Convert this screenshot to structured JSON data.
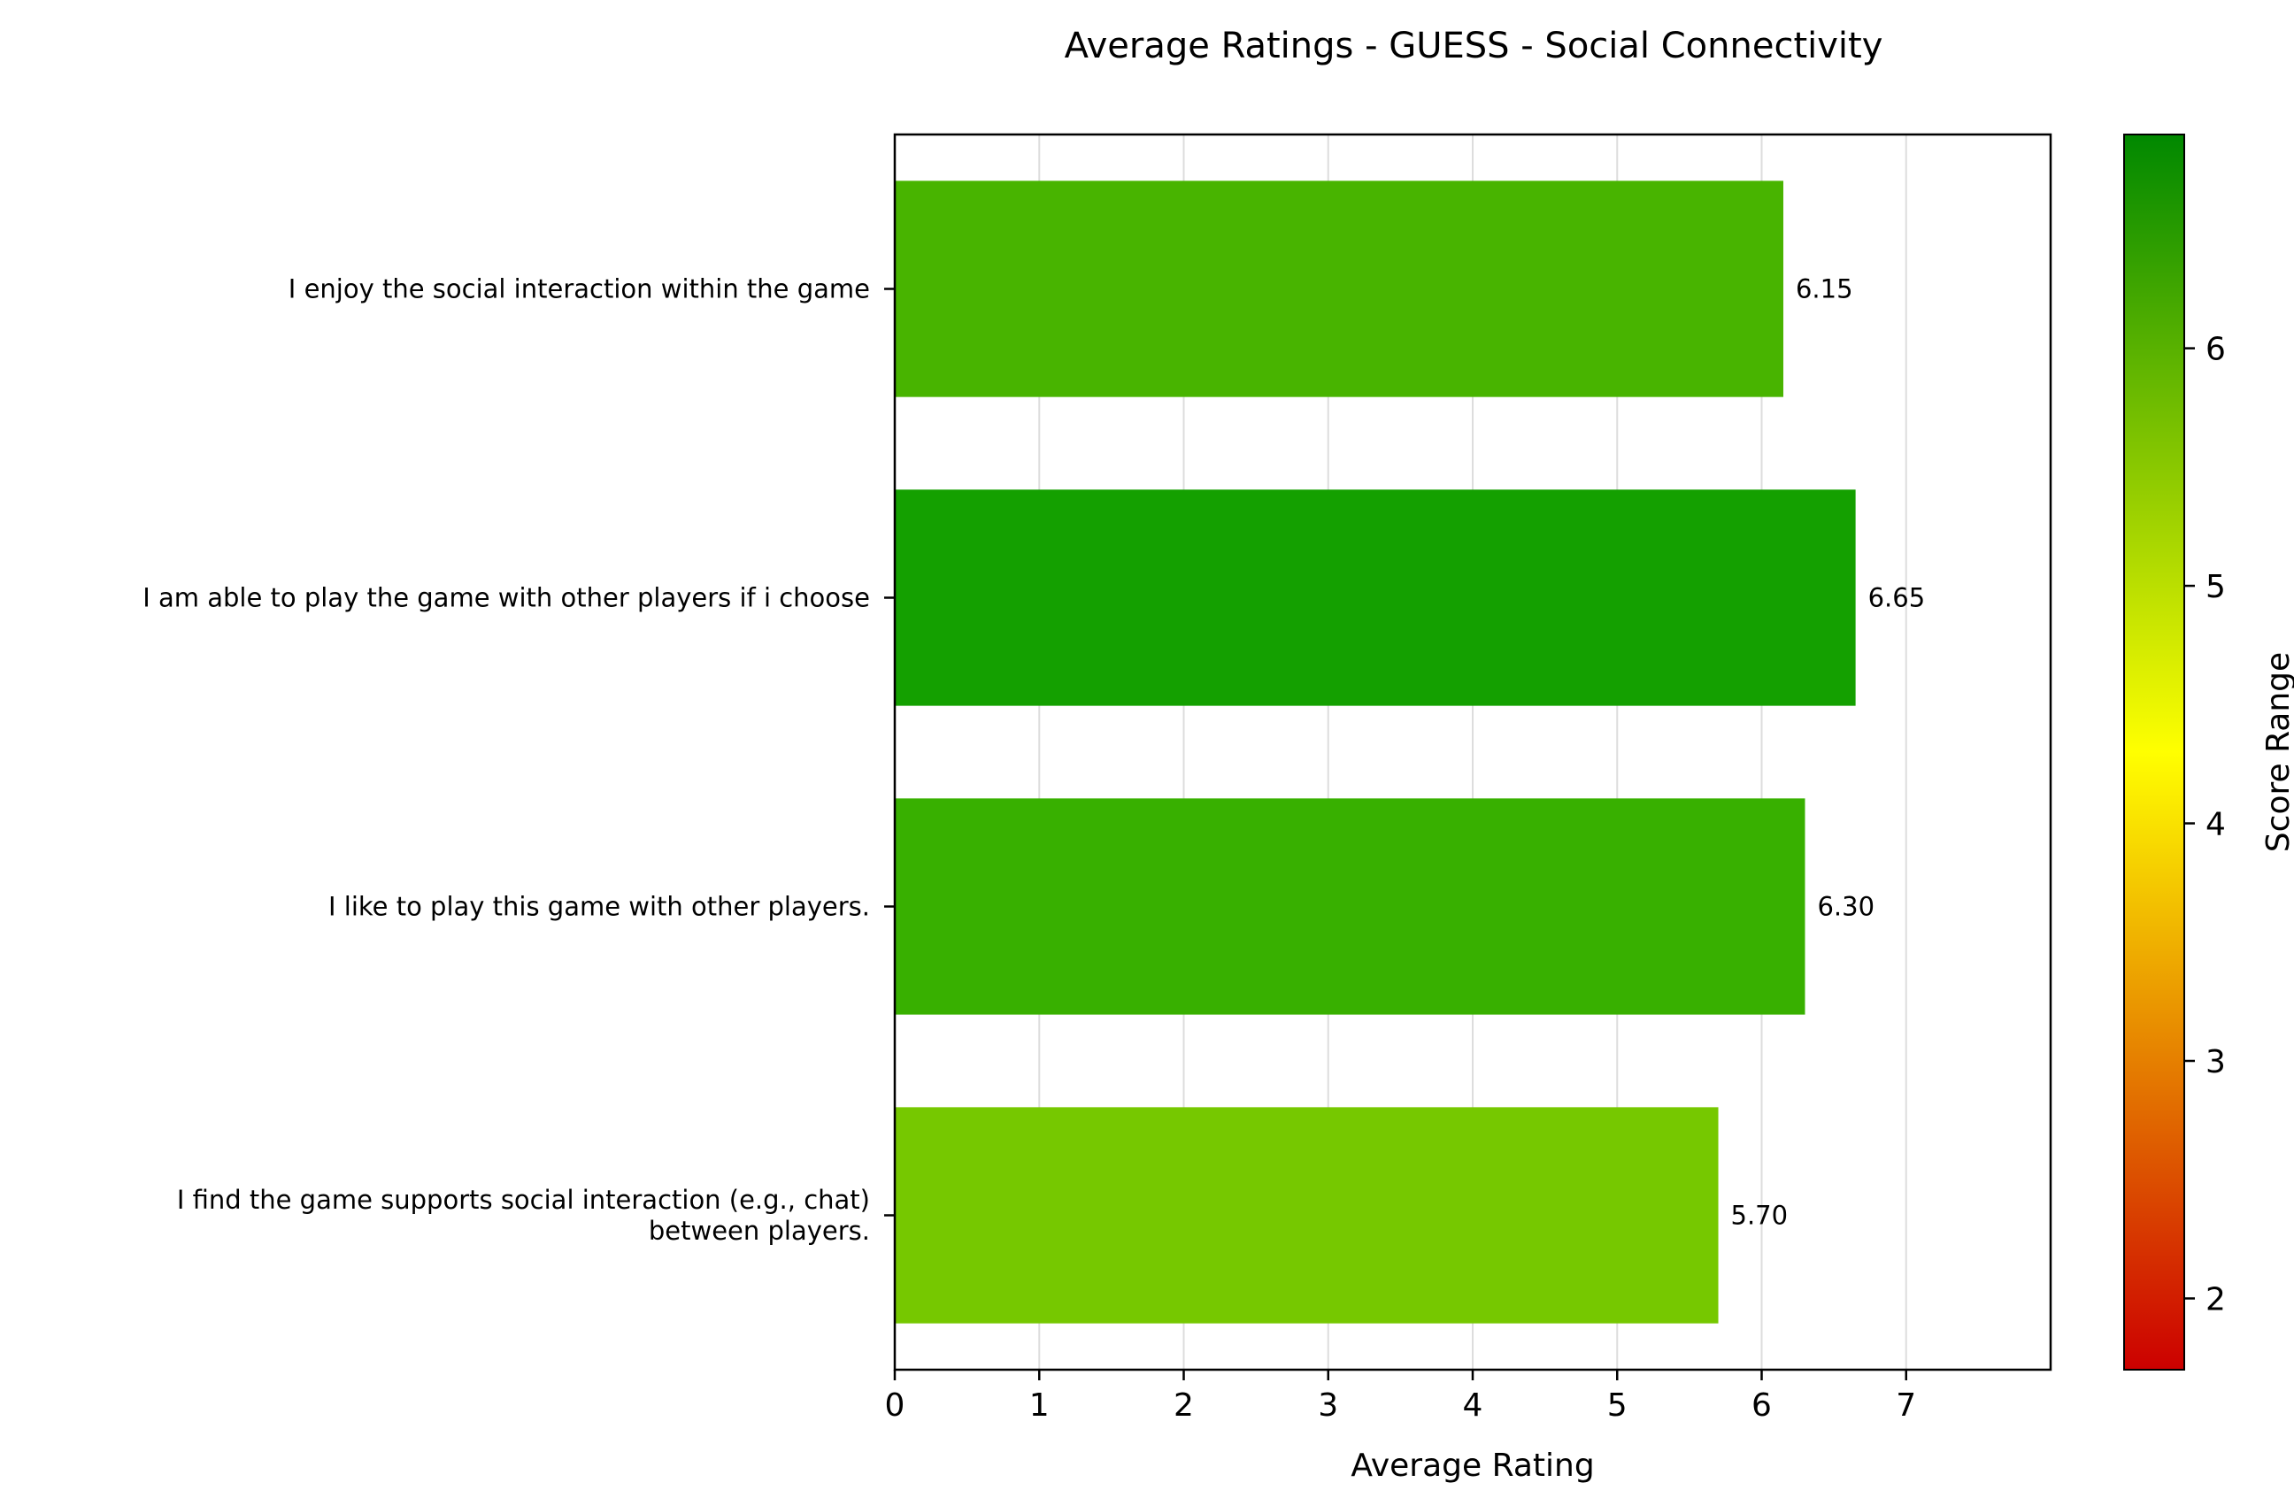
{
  "chart_data": {
    "type": "bar",
    "orientation": "horizontal",
    "title": "Average Ratings - GUESS - Social Connectivity",
    "xlabel": "Average Rating",
    "ylabel": "",
    "xlim": [
      0,
      8
    ],
    "xticks": [
      0,
      1,
      2,
      3,
      4,
      5,
      6,
      7
    ],
    "grid": "vertical",
    "categories": [
      [
        "I enjoy the social interaction within the game"
      ],
      [
        "I am able to play the game with other players if i choose"
      ],
      [
        "I like to play this game with other players."
      ],
      [
        "I find the game supports social interaction (e.g., chat)",
        "between players."
      ]
    ],
    "values": [
      6.15,
      6.65,
      6.3,
      5.7
    ],
    "value_labels": [
      "6.15",
      "6.65",
      "6.30",
      "5.70"
    ],
    "bar_colors": [
      "#48b400",
      "#14a000",
      "#38b000",
      "#76c800"
    ],
    "colorbar": {
      "label": "Score Range",
      "range": [
        1.7,
        6.9
      ],
      "ticks": [
        2,
        3,
        4,
        5,
        6
      ],
      "colors": [
        "#cc0000",
        "#ffff00",
        "#008800"
      ]
    }
  }
}
